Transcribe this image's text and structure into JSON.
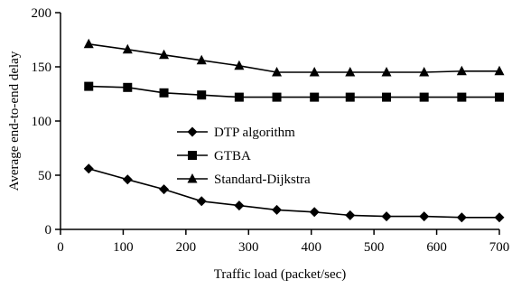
{
  "chart_data": {
    "type": "line",
    "xlabel": "Traffic load (packet/sec)",
    "ylabel": "Average end-to-end delay",
    "xlim": [
      0,
      700
    ],
    "ylim": [
      0,
      200
    ],
    "xticks": [
      0,
      100,
      200,
      300,
      400,
      500,
      600,
      700
    ],
    "yticks": [
      0,
      50,
      100,
      150,
      200
    ],
    "grid": false,
    "legend_position": "center",
    "series": [
      {
        "name": "DTP algorithm",
        "marker": "diamond",
        "x": [
          45,
          107,
          165,
          225,
          285,
          345,
          405,
          462,
          520,
          580,
          640,
          700
        ],
        "y": [
          56,
          46,
          37,
          26,
          22,
          18,
          16,
          13,
          12,
          12,
          11,
          11
        ]
      },
      {
        "name": "GTBA",
        "marker": "square",
        "x": [
          45,
          107,
          165,
          225,
          285,
          345,
          405,
          462,
          520,
          580,
          640,
          700
        ],
        "y": [
          132,
          131,
          126,
          124,
          122,
          122,
          122,
          122,
          122,
          122,
          122,
          122
        ]
      },
      {
        "name": "Standard-Dijkstra",
        "marker": "triangle",
        "x": [
          45,
          107,
          165,
          225,
          285,
          345,
          405,
          462,
          520,
          580,
          640,
          700
        ],
        "y": [
          171,
          166,
          161,
          156,
          151,
          145,
          145,
          145,
          145,
          145,
          146,
          146
        ]
      }
    ]
  }
}
